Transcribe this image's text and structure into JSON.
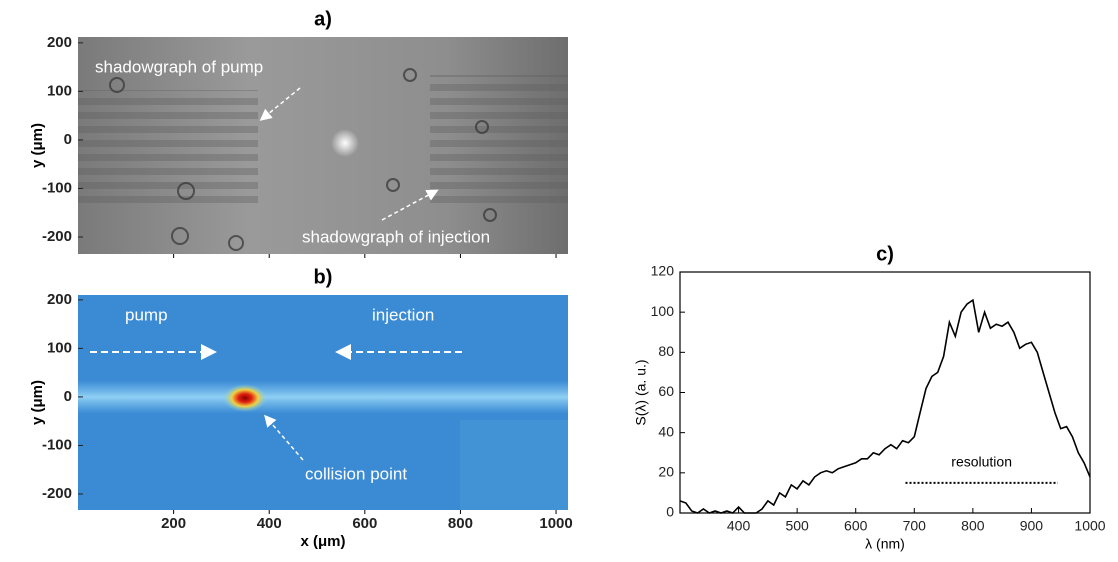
{
  "chart_data": [
    {
      "type": "image",
      "title": "a)",
      "ylabel": "y (μm)",
      "xlim": [
        0,
        1025
      ],
      "ylim": [
        -235,
        212
      ],
      "xticks": [
        200,
        400,
        600,
        800,
        1000
      ],
      "xtick_labels": false,
      "yticks": [
        -200,
        -100,
        0,
        100,
        200
      ],
      "annotations": [
        "shadowgraph of pump",
        "shadowgraph of injection"
      ]
    },
    {
      "type": "image",
      "title": "b)",
      "xlabel": "x (μm)",
      "ylabel": "y (μm)",
      "xlim": [
        0,
        1025
      ],
      "ylim": [
        -233,
        210
      ],
      "xticks": [
        200,
        400,
        600,
        800,
        1000
      ],
      "xtick_labels": true,
      "yticks": [
        -200,
        -100,
        0,
        100,
        200
      ],
      "annotations": [
        "pump",
        "injection",
        "collision point"
      ]
    },
    {
      "type": "line",
      "title": "c)",
      "xlabel": "λ (nm)",
      "ylabel": "S(λ) (a. u.)",
      "color": "#000000",
      "xlim": [
        300,
        1000
      ],
      "ylim": [
        0,
        120
      ],
      "xticks": [
        400,
        500,
        600,
        700,
        800,
        900,
        1000
      ],
      "yticks": [
        0,
        20,
        40,
        60,
        80,
        100,
        120
      ],
      "x": [
        300,
        310,
        320,
        330,
        340,
        350,
        360,
        370,
        380,
        390,
        400,
        410,
        420,
        430,
        440,
        450,
        460,
        470,
        480,
        490,
        500,
        510,
        520,
        530,
        540,
        550,
        560,
        570,
        580,
        590,
        600,
        610,
        620,
        630,
        640,
        650,
        660,
        670,
        680,
        690,
        700,
        710,
        720,
        730,
        740,
        750,
        760,
        770,
        780,
        790,
        800,
        810,
        820,
        830,
        840,
        850,
        860,
        870,
        880,
        890,
        900,
        910,
        920,
        930,
        940,
        950,
        960,
        970,
        980,
        990,
        1000
      ],
      "values": [
        6,
        5,
        1,
        0,
        2,
        0,
        1,
        0,
        1,
        0,
        3,
        0,
        0,
        0,
        2,
        6,
        4,
        10,
        8,
        14,
        12,
        16,
        14,
        18,
        20,
        21,
        20,
        22,
        23,
        24,
        25,
        27,
        27,
        30,
        29,
        32,
        34,
        32,
        36,
        35,
        38,
        50,
        62,
        68,
        70,
        78,
        95,
        88,
        100,
        104,
        106,
        90,
        100,
        92,
        94,
        93,
        95,
        90,
        82,
        84,
        85,
        80,
        70,
        60,
        50,
        42,
        43,
        38,
        30,
        25,
        18
      ],
      "annotation": {
        "text": "resolution",
        "x": [
          685,
          945
        ],
        "y": 15
      }
    }
  ]
}
